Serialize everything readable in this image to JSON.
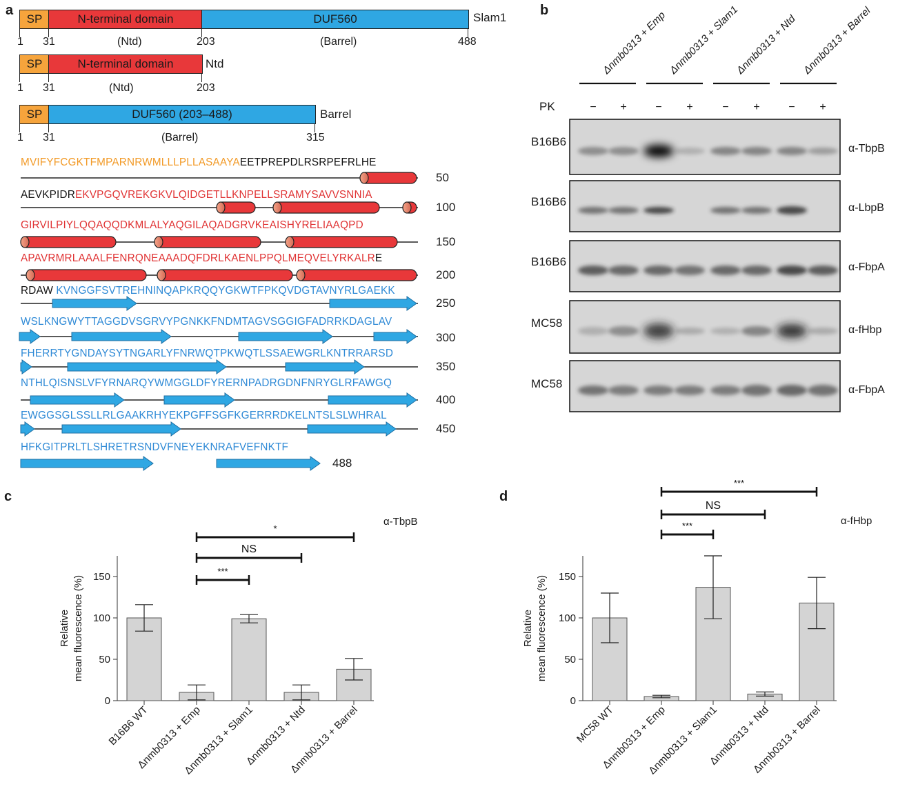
{
  "panel_labels": {
    "a": "a",
    "b": "b",
    "c": "c",
    "d": "d"
  },
  "constructs": [
    {
      "name": "Slam1",
      "sp": "SP",
      "domain1": "N-terminal domain",
      "domain2": "DUF560",
      "sub1": "(Ntd)",
      "sub2": "(Barrel)",
      "pos": [
        "1",
        "31",
        "203",
        "488"
      ]
    },
    {
      "name": "Ntd",
      "sp": "SP",
      "domain1": "N-terminal domain",
      "sub1": "(Ntd)",
      "pos": [
        "1",
        "31",
        "203"
      ]
    },
    {
      "name": "Barrel",
      "sp": "SP",
      "domain2": "DUF560  (203–488)",
      "sub2": "(Barrel)",
      "pos": [
        "1",
        "31",
        "315"
      ]
    }
  ],
  "sequence": {
    "lines": [
      {
        "num": "50",
        "seg": [
          {
            "c": "sp",
            "t": "MVIFYFCGKTFMPARNRWMLLLPLLASAAYA"
          },
          {
            "c": "k",
            "t": "EETPREPDLRSRPEFRLHE"
          }
        ]
      },
      {
        "num": "100",
        "seg": [
          {
            "c": "k",
            "t": "AEVKPIDR"
          },
          {
            "c": "n",
            "t": "EKVPGQVREKGKVLQIDGETLLKNPELLSRAMYSAVVSNNIA"
          }
        ]
      },
      {
        "num": "150",
        "seg": [
          {
            "c": "n",
            "t": "GIRVILPIYLQQAQQDKMLALYAQGILAQADGRVKEAISHYRELIAAQPD"
          }
        ]
      },
      {
        "num": "200",
        "seg": [
          {
            "c": "n",
            "t": "APAVRMRLAAALFENRQNEAAADQFDRLKAENLPPQLMEQVELYRKALR"
          },
          {
            "c": "k",
            "t": "E"
          }
        ]
      },
      {
        "num": "250",
        "seg": [
          {
            "c": "k",
            "t": "RDAW "
          },
          {
            "c": "b",
            "t": "KVNGGFSVTREHNINQAPKRQQYGKWTFPKQVDGTAVNYRLGAEKK"
          }
        ]
      },
      {
        "num": "300",
        "seg": [
          {
            "c": "b",
            "t": "WSLKNGWYTTAGGDVSGRVYPGNKKFNDMTAGVSGGIGFADRRKDAGLAV"
          }
        ]
      },
      {
        "num": "350",
        "seg": [
          {
            "c": "b",
            "t": "FHERRTYGNDAYSYTNGARLYFNRWQTPKWQTLSSAEWGRLKNTRRARSD"
          }
        ]
      },
      {
        "num": "400",
        "seg": [
          {
            "c": "b",
            "t": "NTHLQISNSLVFYRNARQYWMGGLDFYRERNPADRGDNFNRYGLRFAWGQ"
          }
        ]
      },
      {
        "num": "450",
        "seg": [
          {
            "c": "b",
            "t": "EWGGSGLSSLLRLGAAKRHYEKPGFFSGFKGERRRDKELNTSLSLWHRAL"
          }
        ]
      },
      {
        "num": "488",
        "seg": [
          {
            "c": "b",
            "t": "HFKGITPRLTLSHRETRSNDVFNEYEKNRAFVEFNKTF"
          }
        ]
      }
    ]
  },
  "blot": {
    "lanes": [
      "Δnmb0313 + Emp",
      "Δnmb0313 + Slam1",
      "Δnmb0313 + Ntd",
      "Δnmb0313 + Barrel"
    ],
    "pk_label": "PK",
    "pk": [
      "−",
      "+",
      "−",
      "+",
      "−",
      "+",
      "−",
      "+"
    ],
    "rows": [
      {
        "strain": "B16B6",
        "antibody": "α-TbpB"
      },
      {
        "strain": "B16B6",
        "antibody": "α-LbpB"
      },
      {
        "strain": "B16B6",
        "antibody": "α-FbpA"
      },
      {
        "strain": "MC58",
        "antibody": "α-fHbp"
      },
      {
        "strain": "MC58",
        "antibody": "α-FbpA"
      }
    ]
  },
  "chart_data": [
    {
      "type": "bar",
      "title": "α-TbpB",
      "ylabel": "Relative mean fluorescence (%)",
      "ylabel_lines": [
        "Relative",
        "mean fluorescence (%)"
      ],
      "ylim": [
        0,
        175
      ],
      "yticks": [
        "0",
        "50",
        "100",
        "150"
      ],
      "categories": [
        "B16B6 WT",
        "Δnmb0313 + Emp",
        "Δnmb0313 + Slam1",
        "Δnmb0313 + Ntd",
        "Δnmb0313 + Barrel"
      ],
      "values": [
        100,
        10,
        99,
        10,
        38
      ],
      "errors": [
        16,
        9,
        5,
        9,
        13
      ],
      "significance": [
        {
          "from": 1,
          "to": 2,
          "label": "***"
        },
        {
          "from": 1,
          "to": 3,
          "label": "NS"
        },
        {
          "from": 1,
          "to": 4,
          "label": "*"
        }
      ]
    },
    {
      "type": "bar",
      "title": "α-fHbp",
      "ylabel": "Relative mean fluorescence (%)",
      "ylabel_lines": [
        "Relative",
        "mean fluorescence (%)"
      ],
      "ylim": [
        0,
        175
      ],
      "yticks": [
        "0",
        "50",
        "100",
        "150"
      ],
      "categories": [
        "MC58 WT",
        "Δnmb0313 + Emp",
        "Δnmb0313 + Slam1",
        "Δnmb0313 + Ntd",
        "Δnmb0313 + Barrel"
      ],
      "values": [
        100,
        5,
        137,
        8,
        118
      ],
      "errors": [
        30,
        1.5,
        38,
        2.5,
        31
      ],
      "significance": [
        {
          "from": 1,
          "to": 2,
          "label": "***"
        },
        {
          "from": 1,
          "to": 3,
          "label": "NS"
        },
        {
          "from": 1,
          "to": 4,
          "label": "***"
        }
      ]
    }
  ]
}
